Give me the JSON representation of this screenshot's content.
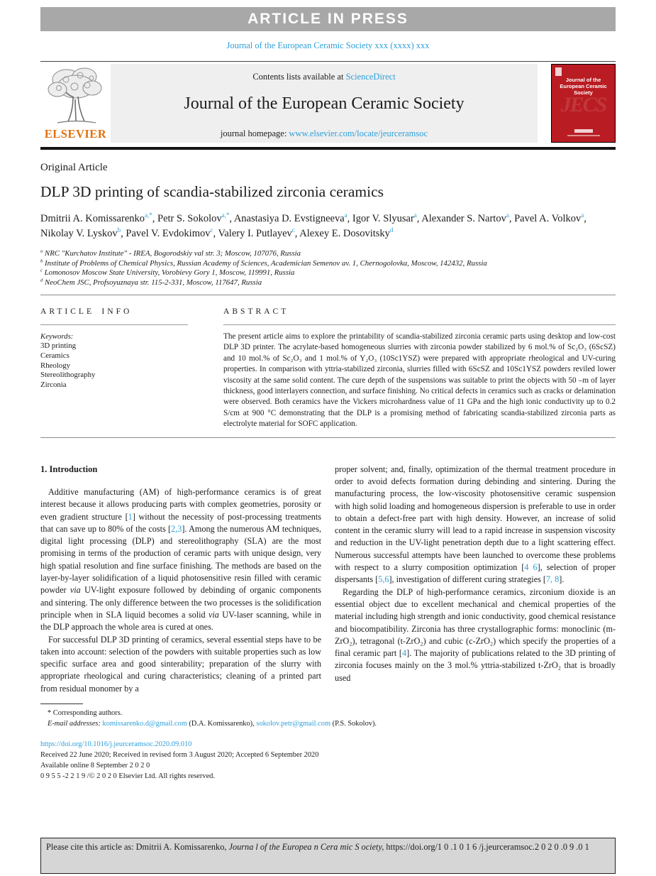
{
  "banner": {
    "text": "ARTICLE IN PRESS"
  },
  "journal_ref": "Journal of the European Ceramic Society xxx (xxxx) xxx",
  "masthead": {
    "contents_line": "Contents lists available at",
    "sciencedirect": "ScienceDirect",
    "journal_title": "Journal of the European Ceramic Society",
    "homepage_label": "journal homepage:",
    "homepage_url": "www.elsevier.com/locate/jeurceramsoc",
    "elsevier_wordmark": "ELSEVIER",
    "cover": {
      "title": "Journal of the European Ceramic Society",
      "watermark": "JECS"
    }
  },
  "article": {
    "type_label": "Original Article",
    "title": "DLP 3D printing of scandia-stabilized zirconia ceramics",
    "authors": [
      {
        "name": "Dmitrii A. Komissarenko",
        "sup": "a,*"
      },
      {
        "name": "Petr S. Sokolov",
        "sup": "a,*"
      },
      {
        "name": "Anastasiya D. Evstigneeva",
        "sup": "a"
      },
      {
        "name": "Igor V. Slyusar",
        "sup": "a"
      },
      {
        "name": "Alexander S. Nartov",
        "sup": "a"
      },
      {
        "name": "Pavel A. Volkov",
        "sup": "a"
      },
      {
        "name": "Nikolay V. Lyskov",
        "sup": "b"
      },
      {
        "name": "Pavel V. Evdokimov",
        "sup": "c"
      },
      {
        "name": "Valery I. Putlayev",
        "sup": "c"
      },
      {
        "name": "Alexey E. Dosovitsky",
        "sup": "d"
      }
    ],
    "affiliations": [
      {
        "sup": "a",
        "text": "NRC \"Kurchatov Institute\" - IREA, Bogorodskiy val str. 3; Moscow, 107076, Russia"
      },
      {
        "sup": "b",
        "text": "Institute of Problems of Chemical Physics, Russian Academy of Sciences, Academician Semenov av. 1, Chernogolovka, Moscow, 142432, Russia"
      },
      {
        "sup": "c",
        "text": "Lomonosov Moscow State University, Vorobievy Gory 1, Moscow, 119991, Russia"
      },
      {
        "sup": "d",
        "text": "NeoChem JSC, Profsoyuznaya str. 115-2-331, Moscow, 117647, Russia"
      }
    ]
  },
  "article_info": {
    "heading": "ARTICLE INFO",
    "keywords_label": "Keywords:",
    "keywords": [
      "3D printing",
      "Ceramics",
      "Rheology",
      "Stereolithography",
      "Zirconia"
    ]
  },
  "abstract": {
    "heading": "ABSTRACT",
    "text": "The present article aims to explore the printability of scandia-stabilized zirconia ceramic parts using desktop and low-cost DLP 3D printer. The acrylate-based homogeneous slurries with zirconia powder stabilized by 6 mol.% of Sc₂O₃ (6ScSZ) and 10 mol.% of Sc₂O₃ and 1 mol.% of Y₂O₃ (10Sc1YSZ) were prepared with appropriate rheological and UV-curing properties. In comparison with yttria-stabilized zirconia, slurries filled with 6ScSZ and 10Sc1YSZ powders reviled lower viscosity at the same solid content. The cure depth of the suspensions was suitable to print the objects with 50 –m of layer thickness, good interlayers connection, and surface finishing. No critical defects in ceramics such as cracks or delamination were observed. Both ceramics have the Vickers microhardness value of 11 GPa and the high ionic conductivity up to 0.2 S/cm at 900 °C demonstrating that the DLP is a promising method of fabricating scandia-stabilized zirconia parts as electrolyte material for SOFC application."
  },
  "sections": {
    "intro_heading": "1. Introduction",
    "left_paragraphs": [
      "Additive manufacturing (AM) of high-performance ceramics is of great interest because it allows producing parts with complex geometries, porosity or even gradient structure [1] without the necessity of post-processing treatments that can save up to 80% of the costs [2,3]. Among the numerous AM techniques, digital light processing (DLP) and stereolithography (SLA) are the most promising in terms of the production of ceramic parts with unique design, very high spatial resolution and fine surface finishing. The methods are based on the layer-by-layer solidification of a liquid photosensitive resin filled with ceramic powder via UV-light exposure followed by debinding of organic components and sintering. The only difference between the two processes is the solidification principle when in SLA liquid becomes a solid via UV-laser scanning, while in the DLP approach the whole area is cured at ones.",
      "For successful DLP 3D printing of ceramics, several essential steps have to be taken into account: selection of the powders with suitable properties such as low specific surface area and good sinterability; preparation of the slurry with appropriate rheological and curing characteristics; cleaning of a printed part from residual monomer by a"
    ],
    "right_paragraphs": [
      "proper solvent; and, finally, optimization of the thermal treatment procedure in order to avoid defects formation during debinding and sintering. During the manufacturing process, the low-viscosity photosensitive ceramic suspension with high solid loading and homogeneous dispersion is preferable to use in order to obtain a defect-free part with high density. However, an increase of solid content in the ceramic slurry will lead to a rapid increase in suspension viscosity and reduction in the UV-light penetration depth due to a light scattering effect. Numerous successful attempts have been launched to overcome these problems with respect to a slurry composition optimization [4 6], selection of proper dispersants [5,6], investigation of different curing strategies [7, 8].",
      "Regarding the DLP of high-performance ceramics, zirconium dioxide is an essential object due to excellent mechanical and chemical properties of the material including high strength and ionic conductivity, good chemical resistance and biocompatibility. Zirconia has three crystallographic forms: monoclinic (m-ZrO₂), tetragonal (t-ZrO₂) and cubic (c-ZrO₂) which specify the properties of a final ceramic part [4]. The majority of publications related to the 3D printing of zirconia focuses mainly on the 3 mol.% yttria-stabilized t-ZrO₂ that is broadly used"
    ]
  },
  "footnotes": {
    "corresponding": "* Corresponding authors.",
    "email_label": "E-mail addresses:",
    "email1": "komissarenko.d@gmail.com",
    "email1_owner": "(D.A. Komissarenko),",
    "email2": "sokolov.petr@gmail.com",
    "email2_owner": "(P.S. Sokolov)."
  },
  "publication": {
    "doi": "https://doi.org/10.1016/j.jeurceramsoc.2020.09.010",
    "received": "Received 22 June 2020; Received in revised form 3 August 2020; Accepted 6 September 2020",
    "available": "Available online 8 September 2 0 2 0",
    "issn_line": "0 9 5 5 -2 2 1 9 /© 2 0 2 0 Elsevier Ltd. All rights reserved."
  },
  "cite_bar": {
    "prefix": "Please cite this article as: Dmitrii A. Komissarenko,",
    "journal_italic": "Journa l of the Europea n Cera mic S ociety,",
    "doi_text": "https://doi.org/1 0 .1 0 1 6 /j.jeurceramsoc.2 0 2 0 .0 9 .0 1"
  },
  "colors": {
    "link_blue": "#2E9FD9",
    "banner_gray": "#a8a8a8",
    "cover_red": "#B91C22",
    "elsevier_orange": "#E0710F"
  }
}
